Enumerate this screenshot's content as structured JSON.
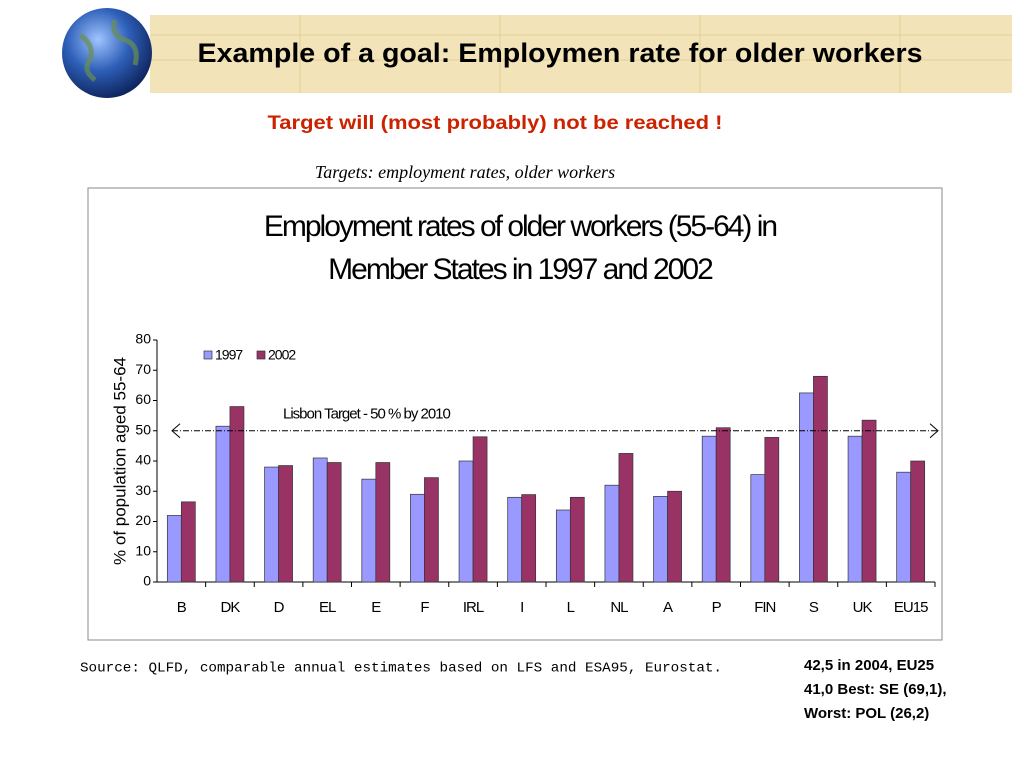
{
  "slide": {
    "title": "Example of a goal: Employmen rate for older workers",
    "subtitle": "Target will (most probably) not be reached !",
    "caption": "Targets: employment rates, older workers",
    "source": "Source: QLFD, comparable annual estimates based on LFS and ESA95, Eurostat.",
    "note": [
      "42,5 in 2004,  EU25",
      "41,0 Best: SE (69,1),",
      "Worst: POL (26,2)"
    ]
  },
  "chart_data": {
    "type": "bar",
    "title": [
      "Employment rates of older workers (55-64) in",
      "Member States in 1997 and 2002"
    ],
    "y_label": "% of population aged 55-64",
    "categories": [
      "B",
      "DK",
      "D",
      "EL",
      "E",
      "F",
      "IRL",
      "I",
      "L",
      "NL",
      "A",
      "P",
      "FIN",
      "S",
      "UK",
      "EU15"
    ],
    "series": [
      {
        "name": "1997",
        "color": "#9999ff",
        "values": [
          22,
          51.5,
          38,
          41,
          34,
          29,
          40,
          28,
          23.8,
          32,
          28.3,
          48.2,
          35.5,
          62.5,
          48.2,
          36.3
        ]
      },
      {
        "name": "2002",
        "color": "#993366",
        "values": [
          26.5,
          58,
          38.5,
          39.5,
          39.5,
          34.5,
          48,
          28.9,
          28,
          42.5,
          30,
          51,
          47.8,
          68,
          53.5,
          40
        ]
      }
    ],
    "ylim": [
      0,
      80
    ],
    "yticks": [
      0,
      10,
      20,
      30,
      40,
      50,
      60,
      70,
      80
    ],
    "target": {
      "value": 50,
      "label": "Lisbon Target - 50 % by 2010"
    },
    "legend": "upper left"
  }
}
